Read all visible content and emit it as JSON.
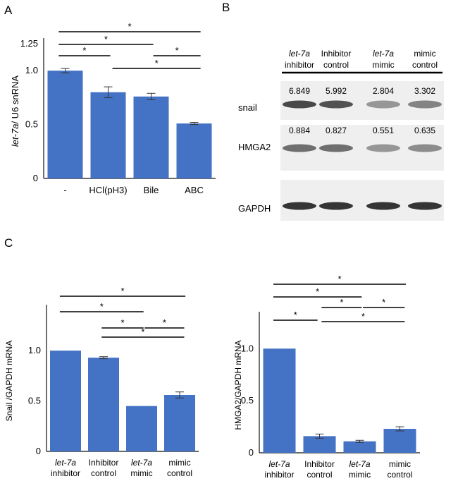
{
  "panels": {
    "a": "A",
    "b": "B",
    "c": "C"
  },
  "colors": {
    "bar": "#4472c4",
    "axis": "#111111",
    "blot_bg": "#efefef",
    "blot_band": "#2a2a2a"
  },
  "chart_data": [
    {
      "id": "chartA",
      "type": "bar",
      "title": "",
      "ylabel_italic": "let-7a",
      "ylabel_rest": "/ U6 snRNA",
      "categories": [
        "-",
        "HCl(pH3)",
        "Bile",
        "ABC"
      ],
      "values": [
        1.0,
        0.8,
        0.76,
        0.51
      ],
      "errors": [
        0.02,
        0.05,
        0.03,
        0.01
      ],
      "ylim": [
        0,
        1.25
      ],
      "yticks": [
        0,
        0.5,
        1.0,
        1.25
      ],
      "ytick_labels": [
        "0",
        "0.5",
        "1.0",
        "1.25"
      ],
      "significance": [
        {
          "from": 0,
          "to": 3,
          "label": "*"
        },
        {
          "from": 0,
          "to": 2,
          "label": "*"
        },
        {
          "from": 0,
          "to": 1,
          "label": "*"
        },
        {
          "from": 2,
          "to": 3,
          "label": "*"
        },
        {
          "from": 1,
          "to": 3,
          "label": "*"
        }
      ]
    },
    {
      "id": "chartC1",
      "type": "bar",
      "title": "",
      "ylabel": "Snail /GAPDH mRNA",
      "categories": [
        {
          "line1": "let-7a",
          "line1_italic": true,
          "line2": "inhibitor"
        },
        {
          "line1": "Inhibitor",
          "line1_italic": false,
          "line2": "control"
        },
        {
          "line1": "let-7a",
          "line1_italic": true,
          "line2": "mimic"
        },
        {
          "line1": "mimic",
          "line1_italic": false,
          "line2": "control"
        }
      ],
      "values": [
        1.0,
        0.93,
        0.45,
        0.56
      ],
      "errors": [
        0.0,
        0.01,
        0.0,
        0.03
      ],
      "ylim": [
        0,
        1.4
      ],
      "yticks": [
        0,
        0.5,
        1.0
      ],
      "ytick_labels": [
        "0",
        "0.5",
        "1.0"
      ],
      "significance": [
        {
          "from": 0,
          "to": 3,
          "label": "*"
        },
        {
          "from": 0,
          "to": 2,
          "label": "*"
        },
        {
          "from": 1,
          "to": 2,
          "label": "*"
        },
        {
          "from": 2,
          "to": 3,
          "label": "*"
        },
        {
          "from": 1,
          "to": 3,
          "label": "*"
        }
      ]
    },
    {
      "id": "chartC2",
      "type": "bar",
      "title": "",
      "ylabel": "HMGA2/GAPDH mRNA",
      "categories": [
        {
          "line1": "let-7a",
          "line1_italic": true,
          "line2": "inhibitor"
        },
        {
          "line1": "Inhibitor",
          "line1_italic": false,
          "line2": "control"
        },
        {
          "line1": "let-7a",
          "line1_italic": true,
          "line2": "mimic"
        },
        {
          "line1": "mimic",
          "line1_italic": false,
          "line2": "control"
        }
      ],
      "values": [
        1.0,
        0.16,
        0.11,
        0.23
      ],
      "errors": [
        0.0,
        0.02,
        0.01,
        0.02
      ],
      "ylim": [
        0,
        1.3
      ],
      "yticks": [
        0,
        0.5,
        1.0
      ],
      "ytick_labels": [
        "0",
        "0.5",
        "1.0"
      ],
      "significance": [
        {
          "from": 0,
          "to": 3,
          "label": "*"
        },
        {
          "from": 0,
          "to": 2,
          "label": "*"
        },
        {
          "from": 1,
          "to": 2,
          "label": "*"
        },
        {
          "from": 2,
          "to": 3,
          "label": "*"
        },
        {
          "from": 0,
          "to": 1,
          "label": "*"
        },
        {
          "from": 1,
          "to": 3,
          "label": "*"
        }
      ]
    }
  ],
  "blot": {
    "lanes": [
      {
        "line1": "let-7a",
        "line1_italic": true,
        "line2": "inhibitor"
      },
      {
        "line1": "Inhibitor",
        "line1_italic": false,
        "line2": "control"
      },
      {
        "line1": "let-7a",
        "line1_italic": true,
        "line2": "mimic"
      },
      {
        "line1": "mimic",
        "line1_italic": false,
        "line2": "control"
      }
    ],
    "rows": [
      {
        "name": "snail",
        "values": [
          "6.849",
          "5.992",
          "2.804",
          "3.302"
        ],
        "intensity": [
          0.85,
          0.8,
          0.45,
          0.55
        ]
      },
      {
        "name": "HMGA2",
        "values": [
          "0.884",
          "0.827",
          "0.551",
          "0.635"
        ],
        "intensity": [
          0.65,
          0.65,
          0.45,
          0.5
        ]
      },
      {
        "name": "GAPDH",
        "values": [],
        "intensity": [
          0.95,
          0.95,
          0.95,
          0.95
        ]
      }
    ]
  }
}
